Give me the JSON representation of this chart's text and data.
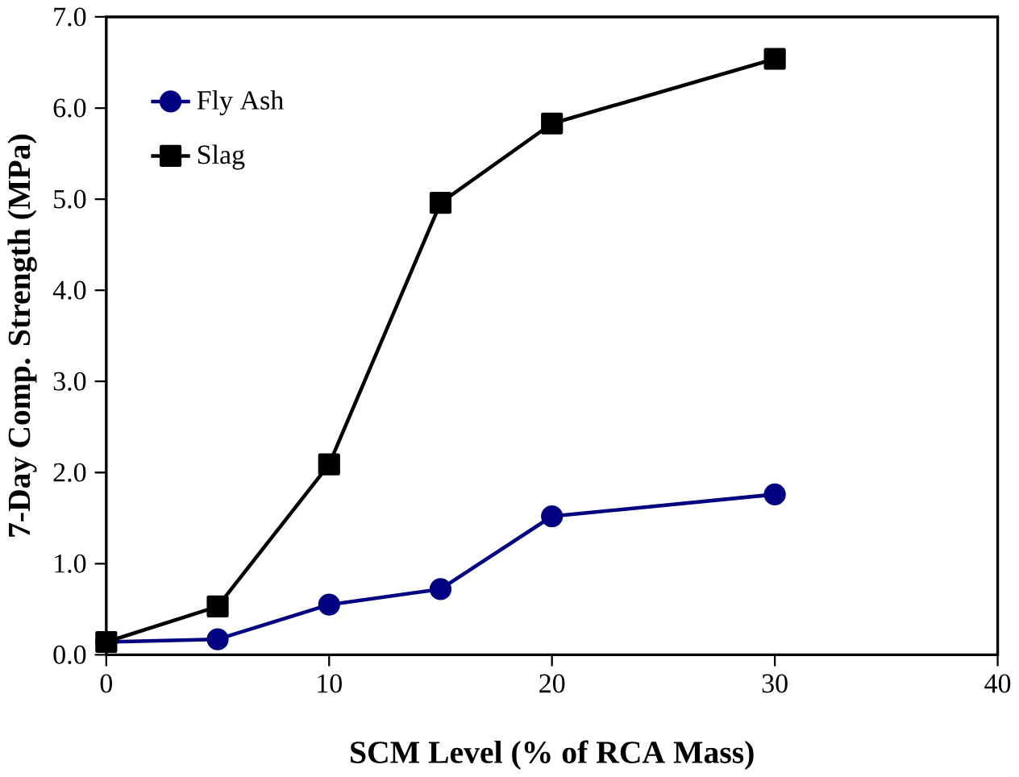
{
  "chart_data": {
    "type": "line",
    "xlabel": "SCM Level (% of RCA Mass)",
    "ylabel": "7-Day Comp. Strength (MPa)",
    "x": [
      0,
      5,
      10,
      15,
      20,
      30
    ],
    "series": [
      {
        "name": "Fly Ash",
        "color": "#000080",
        "marker": "circle",
        "values": [
          0.14,
          0.17,
          0.55,
          0.72,
          1.52,
          1.76
        ]
      },
      {
        "name": "Slag",
        "color": "#000000",
        "marker": "square",
        "values": [
          0.14,
          0.53,
          2.09,
          4.96,
          5.83,
          6.54
        ]
      }
    ],
    "xlim": [
      0,
      40
    ],
    "xticks": [
      0,
      10,
      20,
      30,
      40
    ],
    "ylim": [
      0,
      7
    ],
    "yticks": [
      {
        "value": 0,
        "label": "0.0"
      },
      {
        "value": 1,
        "label": "1.0"
      },
      {
        "value": 2,
        "label": "2.0"
      },
      {
        "value": 3,
        "label": "3.0"
      },
      {
        "value": 4,
        "label": "4.0"
      },
      {
        "value": 5,
        "label": "5.0"
      },
      {
        "value": 6,
        "label": "6.0"
      },
      {
        "value": 7,
        "label": "7.0"
      }
    ],
    "grid": false,
    "legend": "top left",
    "line_style": "solid"
  }
}
